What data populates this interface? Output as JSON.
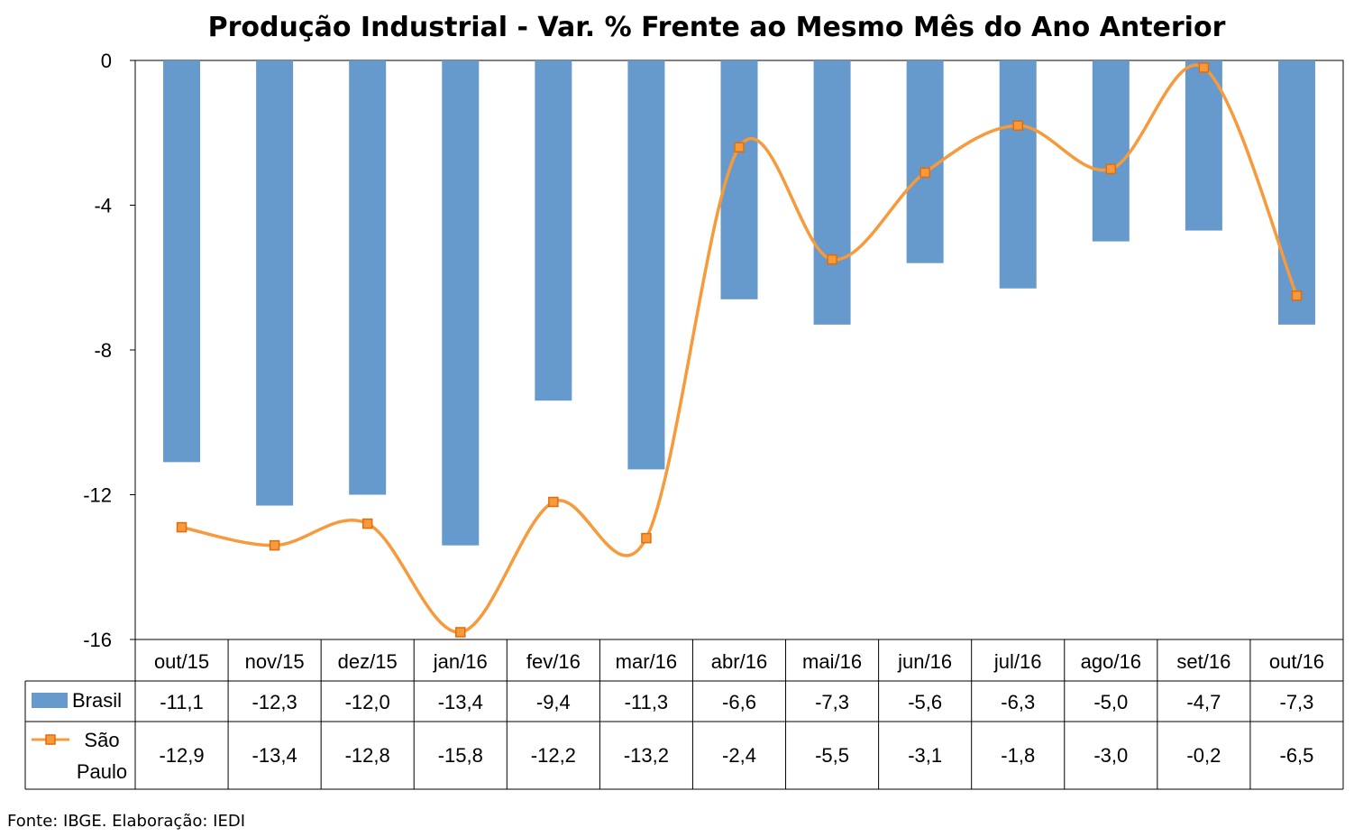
{
  "chart_data": {
    "type": "bar",
    "title": "Produção Industrial - Var. % Frente ao Mesmo Mês do Ano Anterior",
    "categories": [
      "out/15",
      "nov/15",
      "dez/15",
      "jan/16",
      "fev/16",
      "mar/16",
      "abr/16",
      "mai/16",
      "jun/16",
      "jul/16",
      "ago/16",
      "set/16",
      "out/16"
    ],
    "series": [
      {
        "name": "Brasil",
        "kind": "bar",
        "color": "#6699cc",
        "values": [
          -11.1,
          -12.3,
          -12.0,
          -13.4,
          -9.4,
          -11.3,
          -6.6,
          -7.3,
          -5.6,
          -6.3,
          -5.0,
          -4.7,
          -7.3
        ],
        "labels": [
          "-11,1",
          "-12,3",
          "-12,0",
          "-13,4",
          "-9,4",
          "-11,3",
          "-6,6",
          "-7,3",
          "-5,6",
          "-6,3",
          "-5,0",
          "-4,7",
          "-7,3"
        ]
      },
      {
        "name": "São Paulo",
        "kind": "line",
        "color": "#f79a3c",
        "marker": "square",
        "values": [
          -12.9,
          -13.4,
          -12.8,
          -15.8,
          -12.2,
          -13.2,
          -2.4,
          -5.5,
          -3.1,
          -1.8,
          -3.0,
          -0.2,
          -6.5
        ],
        "labels": [
          "-12,9",
          "-13,4",
          "-12,8",
          "-15,8",
          "-12,2",
          "-13,2",
          "-2,4",
          "-5,5",
          "-3,1",
          "-1,8",
          "-3,0",
          "-0,2",
          "-6,5"
        ]
      }
    ],
    "ylim": [
      -16,
      0
    ],
    "yticks": [
      0,
      -4,
      -8,
      -12,
      -16
    ],
    "ytick_labels": [
      "0",
      "-4",
      "-8",
      "-12",
      "-16"
    ],
    "grid": false,
    "legend": "data table"
  },
  "source_note": "Fonte: IBGE. Elaboração: IEDI"
}
